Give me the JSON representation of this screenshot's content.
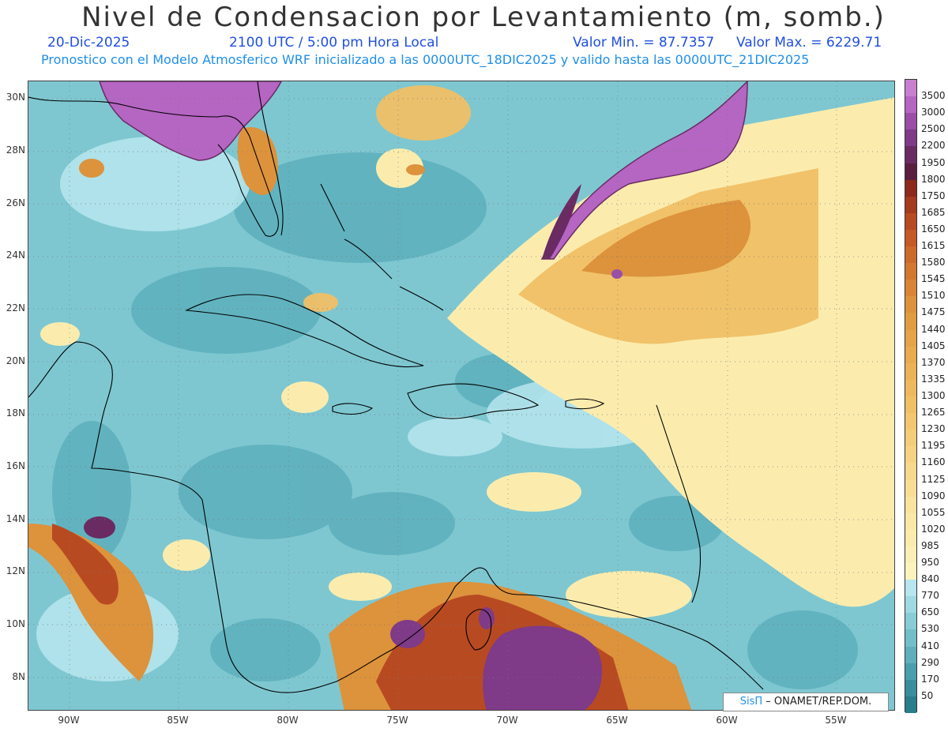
{
  "header": {
    "title": "Nivel de Condensacion por Levantamiento (m, somb.)",
    "date": "20-Dic-2025",
    "time": "2100 UTC / 5:00 pm Hora Local",
    "min_label": "Valor Min. = 87.7357",
    "max_label": "Valor Max. = 6229.71",
    "forecast_note": "Pronostico con el Modelo Atmosferico WRF inicializado a las 0000UTC_18DIC2025 y valido hasta las  0000UTC_21DIC2025"
  },
  "map": {
    "lat_labels": [
      "30N",
      "28N",
      "26N",
      "24N",
      "22N",
      "20N",
      "18N",
      "16N",
      "14N",
      "12N",
      "10N",
      "8N"
    ],
    "lon_labels": [
      "90W",
      "85W",
      "80W",
      "75W",
      "70W",
      "65W",
      "60W",
      "55W"
    ],
    "ocean_color": "#6fbcc8",
    "land_outline_color": "#000000",
    "grid": "dotted"
  },
  "colorbar": {
    "levels": [
      {
        "label": "3500",
        "color": "#c77fd0"
      },
      {
        "label": "3000",
        "color": "#b565c2"
      },
      {
        "label": "2500",
        "color": "#9a4ea6"
      },
      {
        "label": "2200",
        "color": "#7f3a88"
      },
      {
        "label": "1950",
        "color": "#6a2b62"
      },
      {
        "label": "1800",
        "color": "#5a1f3f"
      },
      {
        "label": "1750",
        "color": "#8c2a1c"
      },
      {
        "label": "1685",
        "color": "#a43a1e"
      },
      {
        "label": "1650",
        "color": "#b84a22"
      },
      {
        "label": "1615",
        "color": "#c45a26"
      },
      {
        "label": "1580",
        "color": "#cc6a2a"
      },
      {
        "label": "1545",
        "color": "#d2782f"
      },
      {
        "label": "1510",
        "color": "#d88636"
      },
      {
        "label": "1475",
        "color": "#dd923c"
      },
      {
        "label": "1440",
        "color": "#e19c42"
      },
      {
        "label": "1405",
        "color": "#e5a448"
      },
      {
        "label": "1370",
        "color": "#e8ab4e"
      },
      {
        "label": "1335",
        "color": "#ebb256"
      },
      {
        "label": "1300",
        "color": "#eeb95e"
      },
      {
        "label": "1265",
        "color": "#f0c066"
      },
      {
        "label": "1230",
        "color": "#f2c76f"
      },
      {
        "label": "1195",
        "color": "#f4cd78"
      },
      {
        "label": "1160",
        "color": "#f6d382"
      },
      {
        "label": "1125",
        "color": "#f7d98c"
      },
      {
        "label": "1090",
        "color": "#f8de95"
      },
      {
        "label": "1055",
        "color": "#f9e39e"
      },
      {
        "label": "1020",
        "color": "#fae8a6"
      },
      {
        "label": "985",
        "color": "#fbecae"
      },
      {
        "label": "950",
        "color": "#fcefb5"
      },
      {
        "label": "840",
        "color": "#fdf3bd"
      },
      {
        "label": "770",
        "color": "#b7e6ee"
      },
      {
        "label": "650",
        "color": "#9fd9e2"
      },
      {
        "label": "530",
        "color": "#88ccd6"
      },
      {
        "label": "410",
        "color": "#72bfca"
      },
      {
        "label": "290",
        "color": "#5eb0bd"
      },
      {
        "label": "170",
        "color": "#4a9fad"
      },
      {
        "label": "50",
        "color": "#388e9c"
      },
      {
        "label": "",
        "color": "#2a7e8c"
      }
    ]
  },
  "credit": {
    "brand": "SisΠ",
    "org": " – ONAMET/REP.DOM."
  }
}
